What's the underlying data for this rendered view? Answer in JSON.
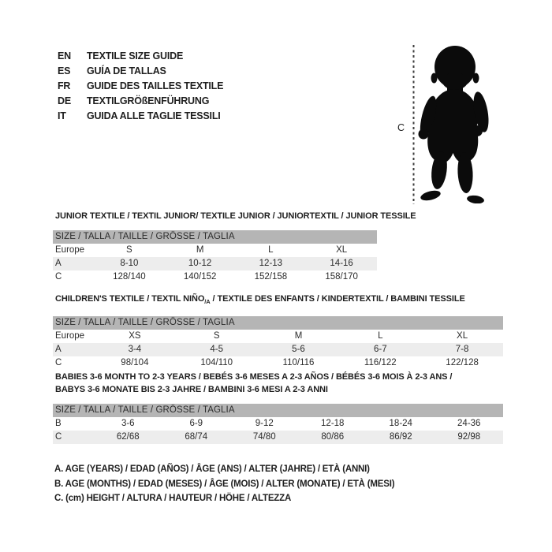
{
  "colors": {
    "header_bar_bg": "#b5b5b5",
    "row_shaded_bg": "#ededed",
    "text_primary": "#1e1e1e",
    "silhouette": "#0b0b0b"
  },
  "language_guide": {
    "items": [
      {
        "code": "EN",
        "label": "TEXTILE SIZE GUIDE"
      },
      {
        "code": "ES",
        "label": "GUÍA DE TALLAS"
      },
      {
        "code": "FR",
        "label": "GUIDE DES TAILLES TEXTILE"
      },
      {
        "code": "DE",
        "label": "TEXTILGRÖßENFÜHRUNG"
      },
      {
        "code": "IT",
        "label": "GUIDA ALLE TAGLIE TESSILI"
      }
    ]
  },
  "figure": {
    "icon": "baby-silhouette",
    "measure_label": "C"
  },
  "size_tables": [
    {
      "title_lines": [
        [
          {
            "text": "JUNIOR TEXTILE / TEXTIL JUNIOR/ TEXTILE JUNIOR / JUNIORTEXTIL / JUNIOR TESSILE"
          }
        ]
      ],
      "header": "SIZE / TALLA / TAILLE / GRÖSSE / TAGLIA",
      "rows": [
        {
          "label": "Europe",
          "values": [
            "S",
            "M",
            "L",
            "XL"
          ],
          "shaded": false
        },
        {
          "label": "A",
          "values": [
            "8-10",
            "10-12",
            "12-13",
            "14-16"
          ],
          "shaded": true
        },
        {
          "label": "C",
          "values": [
            "128/140",
            "140/152",
            "152/158",
            "158/170"
          ],
          "shaded": false
        }
      ]
    },
    {
      "title_lines": [
        [
          {
            "text": "CHILDREN'S TEXTILE / TEXTIL NIÑO"
          },
          {
            "text": "/A",
            "sub": true
          },
          {
            "text": " / TEXTILE DES ENFANTS / KINDERTEXTIL / BAMBINI TESSILE"
          }
        ]
      ],
      "header": "SIZE / TALLA / TAILLE / GRÖSSE / TAGLIA",
      "rows": [
        {
          "label": "Europe",
          "values": [
            "XS",
            "S",
            "M",
            "L",
            "XL"
          ],
          "shaded": false
        },
        {
          "label": "A",
          "values": [
            "3-4",
            "4-5",
            "5-6",
            "6-7",
            "7-8"
          ],
          "shaded": true
        },
        {
          "label": "C",
          "values": [
            "98/104",
            "104/110",
            "110/116",
            "116/122",
            "122/128"
          ],
          "shaded": false
        }
      ]
    },
    {
      "title_lines": [
        [
          {
            "text": "BABIES 3-6 MONTH TO 2-3 YEARS / BEBÉS 3-6 MESES A 2-3 AÑOS / BÉBÉS 3-6 MOIS À 2-3 ANS /"
          }
        ],
        [
          {
            "text": "BABYS 3-6 MONATE BIS 2-3 JAHRE / BAMBINI 3-6 MESI A 2-3 ANNI"
          }
        ]
      ],
      "header": "SIZE / TALLA / TAILLE / GRÖSSE / TAGLIA",
      "rows": [
        {
          "label": "B",
          "values": [
            "3-6",
            "6-9",
            "9-12",
            "12-18",
            "18-24",
            "24-36"
          ],
          "shaded": false
        },
        {
          "label": "C",
          "values": [
            "62/68",
            "68/74",
            "74/80",
            "80/86",
            "86/92",
            "92/98"
          ],
          "shaded": true
        }
      ]
    }
  ],
  "footnotes": [
    "A. AGE (YEARS) / EDAD (AÑOS) / ÂGE (ANS) / ALTER (JAHRE) / ETÀ (ANNI)",
    "B. AGE (MONTHS) / EDAD (MESES) / ÂGE (MOIS) / ALTER (MONATE) / ETÀ (MESI)",
    "C. (cm) HEIGHT / ALTURA / HAUTEUR / HÖHE / ALTEZZA"
  ]
}
